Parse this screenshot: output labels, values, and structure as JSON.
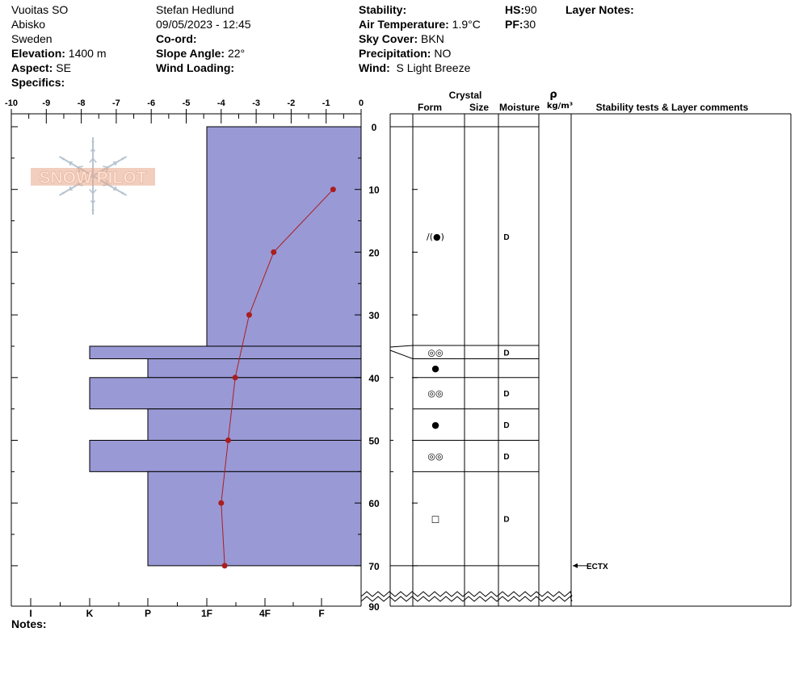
{
  "header": {
    "col1": [
      "Vuoitas SO",
      "Abisko",
      "Sweden"
    ],
    "elevation_label": "Elevation:",
    "elevation": "1400 m",
    "aspect_label": "Aspect:",
    "aspect": "SE",
    "specifics_label": "Specifics:",
    "observer": "Stefan Hedlund",
    "datetime": "09/05/2023 - 12:45",
    "coord_label": "Co-ord:",
    "slope_label": "Slope Angle:",
    "slope": "22°",
    "wind_loading_label": "Wind Loading:",
    "stability_label": "Stability:",
    "air_temp_label": "Air Temperature:",
    "air_temp": "1.9°C",
    "sky_label": "Sky Cover:",
    "sky": "BKN",
    "precip_label": "Precipitation:",
    "precip": "NO",
    "wind_label": "Wind:",
    "wind": "S Light Breeze",
    "hs_label": "HS:",
    "hs": "90",
    "pf_label": "PF:",
    "pf": "30",
    "layer_notes_label": "Layer Notes:"
  },
  "logo_text": "SNOW PILOT",
  "notes_label": "Notes:",
  "colors": {
    "hardness_fill": "#9999d6",
    "temp_line": "#aa1e1e",
    "grid": "#000000"
  },
  "chart_data": {
    "type": "snow-profile",
    "temperature_axis": {
      "ticks": [
        "-10",
        "-9",
        "-8",
        "-7",
        "-6",
        "-5",
        "-4",
        "-3",
        "-2",
        "-1",
        "0"
      ],
      "range": [
        -10,
        0
      ]
    },
    "depth_axis": {
      "ticks": [
        "0",
        "10",
        "20",
        "30",
        "40",
        "50",
        "60",
        "70",
        "90"
      ],
      "range": [
        0,
        90
      ],
      "break_after": 70
    },
    "hardness_axis": {
      "ticks": [
        "I",
        "K",
        "P",
        "1F",
        "4F",
        "F"
      ]
    },
    "hardness_layers": [
      {
        "top": 0,
        "bottom": 35,
        "hardness": "1F"
      },
      {
        "top": 35,
        "bottom": 37,
        "hardness": "K"
      },
      {
        "top": 37,
        "bottom": 40,
        "hardness": "P"
      },
      {
        "top": 40,
        "bottom": 45,
        "hardness": "K"
      },
      {
        "top": 45,
        "bottom": 50,
        "hardness": "P"
      },
      {
        "top": 50,
        "bottom": 55,
        "hardness": "K"
      },
      {
        "top": 55,
        "bottom": 70,
        "hardness": "P"
      }
    ],
    "temperature_profile": [
      {
        "depth": 10,
        "temp": -0.8
      },
      {
        "depth": 20,
        "temp": -2.5
      },
      {
        "depth": 30,
        "temp": -3.2
      },
      {
        "depth": 40,
        "temp": -3.6
      },
      {
        "depth": 50,
        "temp": -3.8
      },
      {
        "depth": 60,
        "temp": -4.0
      },
      {
        "depth": 70,
        "temp": -3.9
      }
    ],
    "table_headers": {
      "crystal": "Crystal",
      "form": "Form",
      "size": "Size",
      "moisture": "Moisture",
      "density_symbol": "ρ",
      "density_unit": "kg/m³",
      "comments": "Stability tests & Layer comments"
    },
    "layer_boundaries": [
      0,
      35,
      37,
      40,
      45,
      50,
      55,
      70
    ],
    "layer_rows": [
      {
        "depth": 17.5,
        "form": "/(●)",
        "moisture": "D"
      },
      {
        "depth": 36,
        "form": "◎◎",
        "moisture": "D"
      },
      {
        "depth": 38.5,
        "form": "●",
        "moisture": ""
      },
      {
        "depth": 42.5,
        "form": "◎◎",
        "moisture": "D"
      },
      {
        "depth": 47.5,
        "form": "●",
        "moisture": "D"
      },
      {
        "depth": 52.5,
        "form": "◎◎",
        "moisture": "D"
      },
      {
        "depth": 62.5,
        "form": "□",
        "moisture": "D"
      }
    ],
    "stability_tests": [
      {
        "depth": 70,
        "label": "ECTX"
      }
    ]
  }
}
